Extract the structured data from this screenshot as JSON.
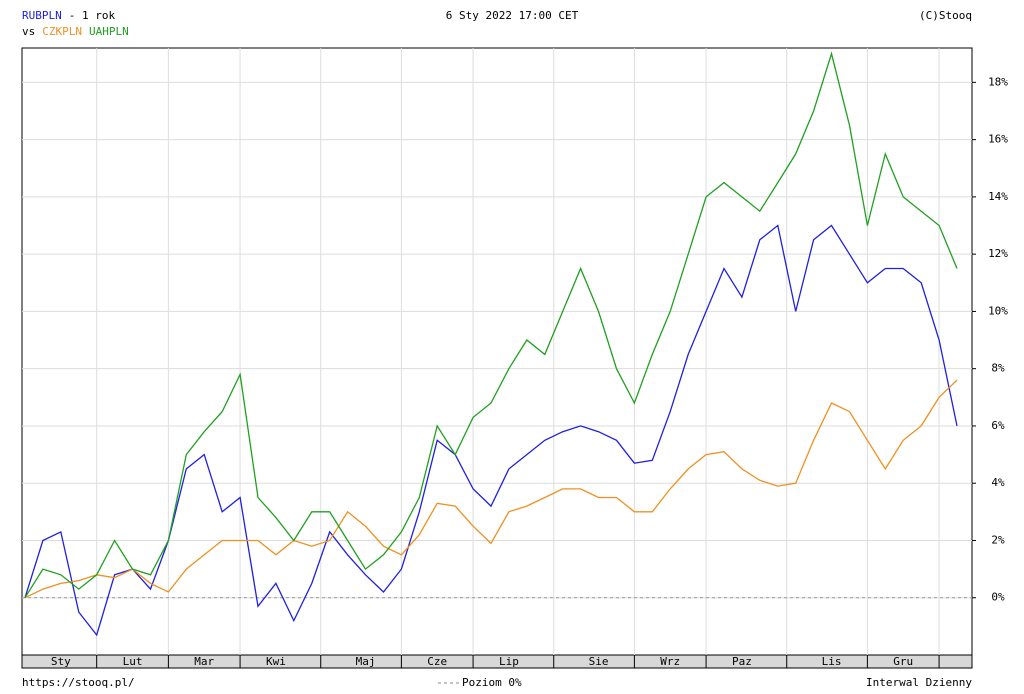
{
  "chart_data": {
    "type": "line",
    "period": "- 1 rok",
    "vs": "vs",
    "date": "6 Sty 2022 17:00 CET",
    "copyright": "(C)Stooq",
    "footer_url": "https://stooq.pl/",
    "zero_line_label": "Poziom 0%",
    "interval": "Interwal Dzienny",
    "categories": [
      null,
      null,
      "Sty",
      null,
      null,
      null,
      "Lut",
      null,
      null,
      null,
      "Mar",
      null,
      null,
      null,
      "Kwi",
      null,
      null,
      null,
      null,
      "Maj",
      null,
      null,
      null,
      "Cze",
      null,
      null,
      null,
      "Lip",
      null,
      null,
      null,
      null,
      "Sie",
      null,
      null,
      null,
      "Wrz",
      null,
      null,
      null,
      "Paz",
      null,
      null,
      null,
      null,
      "Lis",
      null,
      null,
      null,
      "Gru",
      null,
      null,
      null
    ],
    "series": [
      {
        "name": "RUBPLN",
        "color": "#2020e0",
        "values": [
          0,
          2.0,
          2.3,
          -0.5,
          -1.3,
          0.8,
          1.0,
          0.3,
          2.0,
          4.5,
          5.0,
          3.0,
          3.5,
          -0.3,
          0.5,
          -0.8,
          0.5,
          2.3,
          1.5,
          0.8,
          0.2,
          1.0,
          3.0,
          5.5,
          5.0,
          3.8,
          3.2,
          4.5,
          5.0,
          5.5,
          5.8,
          6.0,
          5.8,
          5.5,
          4.7,
          4.8,
          6.5,
          8.5,
          10.0,
          11.5,
          10.5,
          12.5,
          13.0,
          10.0,
          12.5,
          13.0,
          12.0,
          11.0,
          11.5,
          11.5,
          11.0,
          9.0,
          6.0
        ]
      },
      {
        "name": "CZKPLN",
        "color": "#f09020",
        "values": [
          0,
          0.3,
          0.5,
          0.6,
          0.8,
          0.7,
          1.0,
          0.5,
          0.2,
          1.0,
          1.5,
          2.0,
          2.0,
          2.0,
          1.5,
          2.0,
          1.8,
          2.0,
          3.0,
          2.5,
          1.8,
          1.5,
          2.2,
          3.3,
          3.2,
          2.5,
          1.9,
          3.0,
          3.2,
          3.5,
          3.8,
          3.8,
          3.5,
          3.5,
          3.0,
          3.0,
          3.8,
          4.5,
          5.0,
          5.1,
          4.5,
          4.1,
          3.9,
          4.0,
          5.5,
          6.8,
          6.5,
          5.5,
          4.5,
          5.5,
          6.0,
          7.0,
          7.6
        ]
      },
      {
        "name": "UAHPLN",
        "color": "#20a020",
        "values": [
          0,
          1.0,
          0.8,
          0.3,
          0.8,
          2.0,
          1.0,
          0.8,
          2.0,
          5.0,
          5.8,
          6.5,
          7.8,
          3.5,
          2.8,
          2.0,
          3.0,
          3.0,
          2.0,
          1.0,
          1.5,
          2.3,
          3.5,
          6.0,
          5.0,
          6.3,
          6.8,
          8.0,
          9.0,
          8.5,
          10.0,
          11.5,
          10.0,
          8.0,
          6.8,
          8.5,
          10.0,
          12.0,
          14.0,
          14.5,
          14.0,
          13.5,
          14.5,
          15.5,
          17.0,
          19.0,
          16.5,
          13.0,
          15.5,
          14.0,
          13.5,
          13.0,
          11.5
        ]
      }
    ],
    "ylim": [
      -2,
      19.2
    ],
    "yticks": [
      {
        "value": 0,
        "label": "0%"
      },
      {
        "value": 2,
        "label": "2%"
      },
      {
        "value": 4,
        "label": "4%"
      },
      {
        "value": 6,
        "label": "6%"
      },
      {
        "value": 8,
        "label": "8%"
      },
      {
        "value": 10,
        "label": "10%"
      },
      {
        "value": 12,
        "label": "12%"
      },
      {
        "value": 14,
        "label": "14%"
      },
      {
        "value": 16,
        "label": "16%"
      },
      {
        "value": 18,
        "label": "18%"
      }
    ],
    "grid": true
  }
}
